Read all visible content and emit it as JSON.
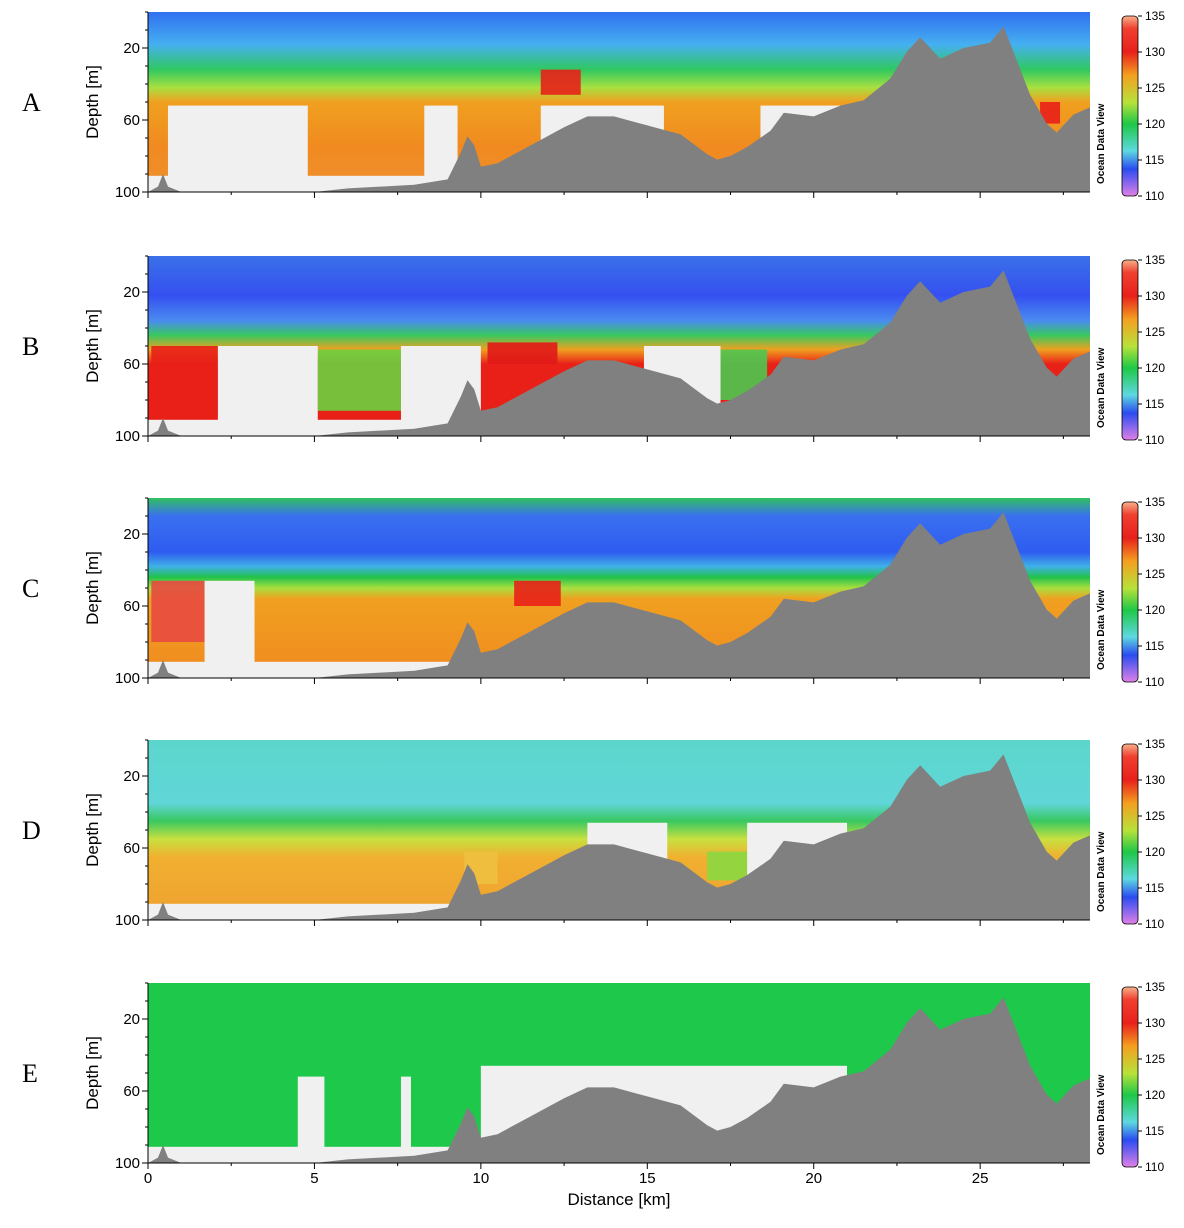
{
  "figure": {
    "x_axis_title": "Distance [km]",
    "y_axis_title": "Depth [m]",
    "watermark": "Ocean Data View"
  },
  "chart_data": [
    {
      "type": "heatmap",
      "panel": "A",
      "ylabel": "Depth [m]",
      "xlim": [
        0,
        28.3
      ],
      "ylim": [
        100,
        0
      ],
      "x_ticks": [
        0,
        5,
        10,
        15,
        20,
        25
      ],
      "y_ticks": [
        20,
        60,
        100
      ],
      "color_scale": [
        110,
        115,
        120,
        125,
        130,
        135
      ],
      "dominant_surface_value": 117,
      "deep_layer_value": 128
    },
    {
      "type": "heatmap",
      "panel": "B",
      "ylabel": "Depth [m]",
      "xlim": [
        0,
        28.3
      ],
      "ylim": [
        100,
        0
      ],
      "x_ticks": [
        0,
        5,
        10,
        15,
        20,
        25
      ],
      "y_ticks": [
        20,
        60,
        100
      ],
      "color_scale": [
        110,
        115,
        120,
        125,
        130,
        135
      ],
      "dominant_surface_value": 114,
      "deep_layer_value": 131
    },
    {
      "type": "heatmap",
      "panel": "C",
      "ylabel": "Depth [m]",
      "xlim": [
        0,
        28.3
      ],
      "ylim": [
        100,
        0
      ],
      "x_ticks": [
        0,
        5,
        10,
        15,
        20,
        25
      ],
      "y_ticks": [
        20,
        60,
        100
      ],
      "color_scale": [
        110,
        115,
        120,
        125,
        130,
        135
      ],
      "dominant_surface_value": 115,
      "deep_layer_value": 127
    },
    {
      "type": "heatmap",
      "panel": "D",
      "ylabel": "Depth [m]",
      "xlim": [
        0,
        28.3
      ],
      "ylim": [
        100,
        0
      ],
      "x_ticks": [
        0,
        5,
        10,
        15,
        20,
        25
      ],
      "y_ticks": [
        20,
        60,
        100
      ],
      "color_scale": [
        110,
        115,
        120,
        125,
        130,
        135
      ],
      "dominant_surface_value": 118,
      "deep_layer_value": 126
    },
    {
      "type": "heatmap",
      "panel": "E",
      "ylabel": "Depth [m]",
      "xlabel": "Distance [km]",
      "xlim": [
        0,
        28.3
      ],
      "ylim": [
        100,
        0
      ],
      "x_ticks": [
        0,
        5,
        10,
        15,
        20,
        25
      ],
      "y_ticks": [
        20,
        60,
        100
      ],
      "color_scale": [
        110,
        115,
        120,
        125,
        130,
        135
      ],
      "dominant_surface_value": 121,
      "deep_layer_value": 121
    }
  ],
  "bathymetry": {
    "unit_x": "km",
    "unit_y": "m",
    "profile": [
      [
        0.0,
        100
      ],
      [
        0.3,
        97
      ],
      [
        0.45,
        90
      ],
      [
        0.6,
        97
      ],
      [
        1.0,
        100
      ],
      [
        5.0,
        100
      ],
      [
        6.0,
        98
      ],
      [
        8.0,
        96
      ],
      [
        9.0,
        93
      ],
      [
        9.4,
        78
      ],
      [
        9.6,
        69
      ],
      [
        9.8,
        74
      ],
      [
        10.0,
        86
      ],
      [
        10.5,
        84
      ],
      [
        11.5,
        74
      ],
      [
        12.5,
        64
      ],
      [
        13.2,
        58
      ],
      [
        14.0,
        58
      ],
      [
        15.0,
        63
      ],
      [
        16.0,
        68
      ],
      [
        16.8,
        79
      ],
      [
        17.1,
        82
      ],
      [
        17.5,
        80
      ],
      [
        18.0,
        75
      ],
      [
        18.7,
        66
      ],
      [
        19.1,
        56
      ],
      [
        20.0,
        58
      ],
      [
        20.8,
        52
      ],
      [
        21.5,
        49
      ],
      [
        22.3,
        37
      ],
      [
        22.8,
        22
      ],
      [
        23.2,
        14
      ],
      [
        23.8,
        26
      ],
      [
        24.5,
        20
      ],
      [
        25.3,
        17
      ],
      [
        25.7,
        8
      ],
      [
        26.0,
        22
      ],
      [
        26.5,
        46
      ],
      [
        27.0,
        62
      ],
      [
        27.3,
        67
      ],
      [
        27.8,
        57
      ],
      [
        28.3,
        53
      ],
      [
        28.3,
        100
      ]
    ]
  }
}
